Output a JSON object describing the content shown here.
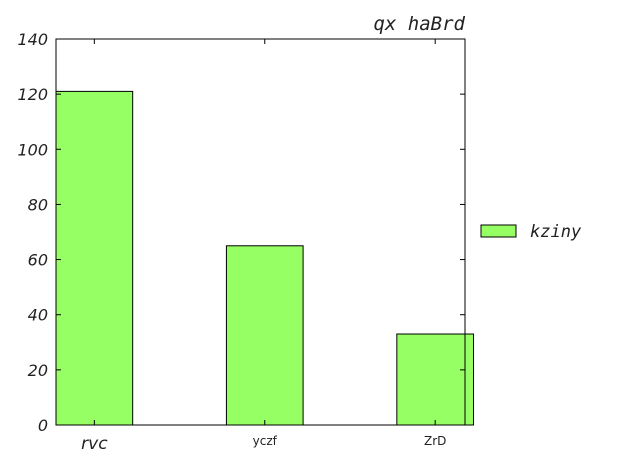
{
  "chart_data": {
    "type": "bar",
    "title": "qx haBrd",
    "categories": [
      "rvc",
      "yczf",
      "ZrD"
    ],
    "series": [
      {
        "name": "kziny",
        "values": [
          121,
          65,
          33
        ],
        "color": "#96ff64"
      }
    ],
    "ylim": [
      0,
      140
    ],
    "yticks": [
      "0",
      "20",
      "40",
      "60",
      "80",
      "100",
      "120",
      "140"
    ],
    "legend": "right",
    "grid": false
  }
}
